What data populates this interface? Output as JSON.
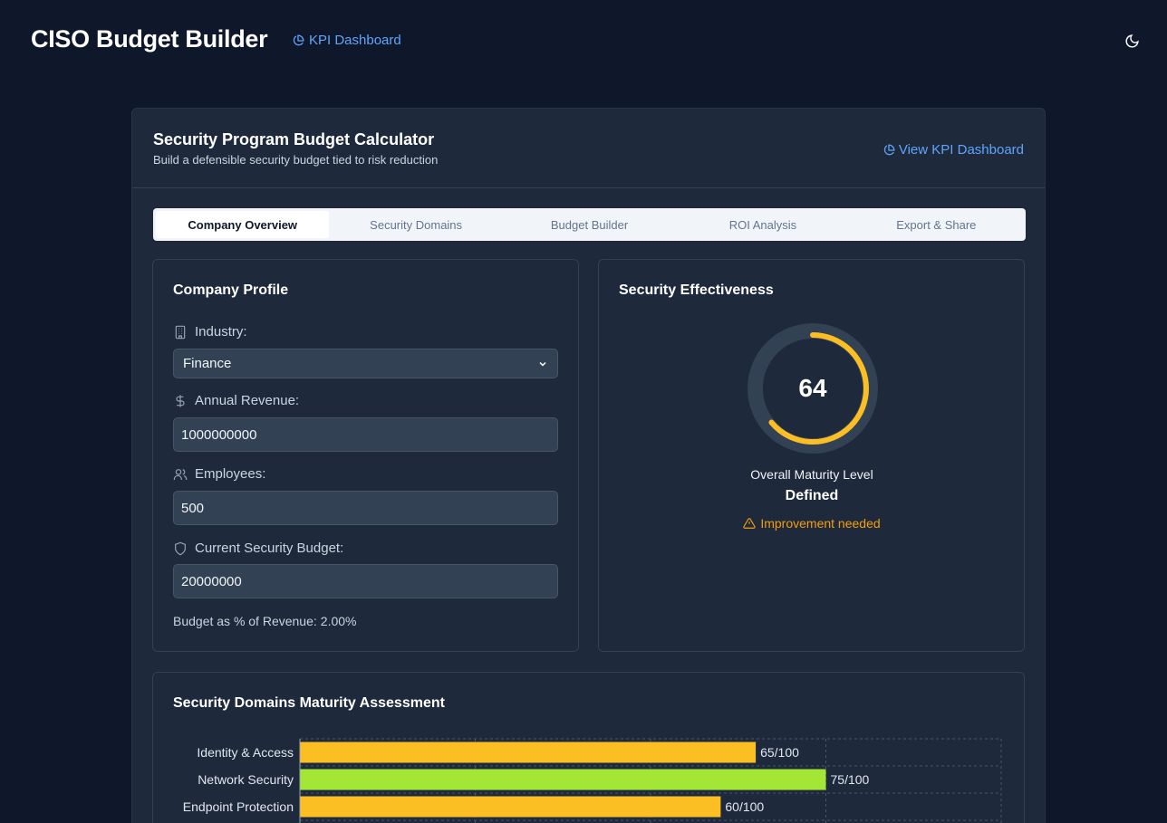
{
  "header": {
    "title": "CISO Budget Builder",
    "kpi_link": "KPI Dashboard",
    "theme_icon": "moon-icon"
  },
  "calculator": {
    "title": "Security Program Budget Calculator",
    "subtitle": "Build a defensible security budget tied to risk reduction",
    "kpi_link": "View KPI Dashboard"
  },
  "tabs": [
    {
      "label": "Company Overview",
      "active": true
    },
    {
      "label": "Security Domains",
      "active": false
    },
    {
      "label": "Budget Builder",
      "active": false
    },
    {
      "label": "ROI Analysis",
      "active": false
    },
    {
      "label": "Export & Share",
      "active": false
    }
  ],
  "profile": {
    "title": "Company Profile",
    "industry_label": "Industry:",
    "industry_value": "Finance",
    "revenue_label": "Annual Revenue:",
    "revenue_value": "1000000000",
    "employees_label": "Employees:",
    "employees_value": "500",
    "budget_label": "Current Security Budget:",
    "budget_value": "20000000",
    "ratio_label": "Budget as % of Revenue:",
    "ratio_value": "2.00%"
  },
  "effectiveness": {
    "title": "Security Effectiveness",
    "score": "64",
    "score_fraction": 0.64,
    "maturity_label": "Overall Maturity Level",
    "maturity_value": "Defined",
    "status": "Improvement needed",
    "gauge_color": "#fbbf24",
    "status_color": "#f59e0b"
  },
  "maturity_chart": {
    "title": "Security Domains Maturity Assessment"
  },
  "chart_data": {
    "type": "bar",
    "orientation": "horizontal",
    "categories": [
      "Identity & Access",
      "Network Security",
      "Endpoint Protection"
    ],
    "values": [
      65,
      75,
      60
    ],
    "value_labels": [
      "65/100",
      "75/100",
      "60/100"
    ],
    "colors": [
      "#fbbf24",
      "#a3e635",
      "#fbbf24"
    ],
    "xlim": [
      0,
      100
    ],
    "grid": true
  }
}
